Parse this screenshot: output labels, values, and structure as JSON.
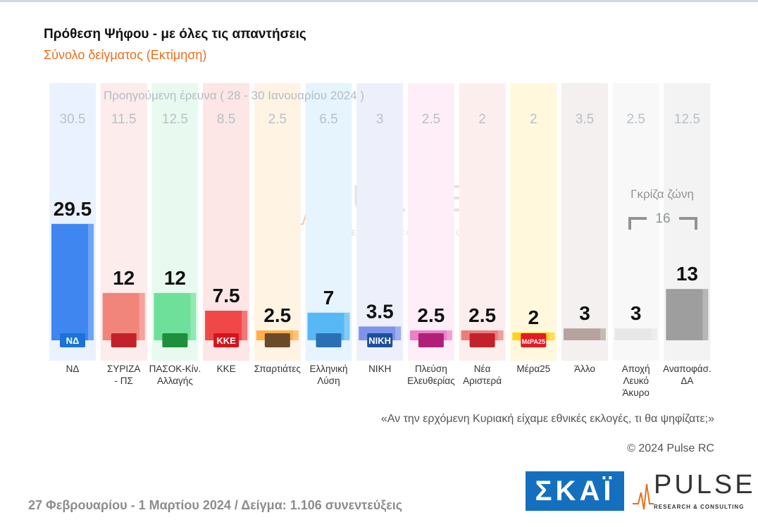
{
  "title": "Πρόθεση Ψήφου - με όλες τις απαντήσεις",
  "subtitle": "Σύνολο δείγματος   (Εκτίμηση)",
  "previous_caption": "Προηγούμενη έρευνα ( 28 - 30 Ιανουαρίου 2024 )",
  "gray_zone": {
    "label": "Γκρίζα ζώνη",
    "value": "16"
  },
  "question": "«Αν την ερχόμενη Κυριακή είχαμε εθνικές εκλογές, τι θα ψηφίζατε;»",
  "copyright": "© 2024 Pulse RC",
  "footer": "27 Φεβρουαρίου - 1 Μαρτίου 2024  /  Δείγμα:  1.106 συνεντεύξεις",
  "logos": {
    "skai": "ΣΚΑΪ",
    "pulse": "PULSE",
    "pulse_tagline": "RESEARCH & CONSULTING",
    "watermark": "PULSE",
    "watermark_tagline": "RESEARCH & CONSULTING"
  },
  "chart_data": {
    "type": "bar",
    "categories": [
      "ΝΔ",
      "ΣΥΡΙΖΑ - ΠΣ",
      "ΠΑΣΟΚ-Κίν. Αλλαγής",
      "ΚΚΕ",
      "Σπαρτιάτες",
      "Ελληνική Λύση",
      "ΝΙΚΗ",
      "Πλεύση Ελευθερίας",
      "Νέα Αριστερά",
      "Μέρα25",
      "Άλλο",
      "Αποχή Λευκό Άκυρο",
      "Αναποφάσ. ΔΑ"
    ],
    "category_lines": [
      [
        "ΝΔ"
      ],
      [
        "ΣΥΡΙΖΑ",
        "- ΠΣ"
      ],
      [
        "ΠΑΣΟΚ-Κίν.",
        "Αλλαγής"
      ],
      [
        "ΚΚΕ"
      ],
      [
        "Σπαρτιάτες"
      ],
      [
        "Ελληνική",
        "Λύση"
      ],
      [
        "ΝΙΚΗ"
      ],
      [
        "Πλεύση",
        "Ελευθερίας"
      ],
      [
        "Νέα",
        "Αριστερά"
      ],
      [
        "Μέρα25"
      ],
      [
        "Άλλο"
      ],
      [
        "Αποχή",
        "Λευκό",
        "Άκυρο"
      ],
      [
        "Αναποφάσ.",
        "ΔΑ"
      ]
    ],
    "series": [
      {
        "values": [
          29.5,
          12,
          12,
          7.5,
          2.5,
          7,
          3.5,
          2.5,
          2.5,
          2,
          3,
          3,
          13
        ]
      },
      {
        "name": "Προηγούμενη έρευνα ( 28 - 30 Ιανουαρίου 2024 )",
        "values": [
          30.5,
          11.5,
          12.5,
          8.5,
          2.5,
          6.5,
          3,
          2.5,
          2,
          2,
          3.5,
          2.5,
          12.5
        ]
      }
    ],
    "value_labels": [
      "29.5",
      "12",
      "12",
      "7.5",
      "2.5",
      "7",
      "3.5",
      "2.5",
      "2.5",
      "2",
      "3",
      "3",
      "13"
    ],
    "previous_labels": [
      "30.5",
      "11.5",
      "12.5",
      "8.5",
      "2.5",
      "6.5",
      "3",
      "2.5",
      "2",
      "2",
      "3.5",
      "2.5",
      "12.5"
    ],
    "party_marks": [
      "ΝΔ",
      "",
      "",
      "ΚΚΕ",
      "",
      "",
      "ΝΙΚΗ",
      "",
      "",
      "ΜέΡΑ25",
      "",
      "",
      ""
    ],
    "colors": [
      "#3f86f0",
      "#f2857b",
      "#6fe09a",
      "#f04848",
      "#ffb04a",
      "#58b8f6",
      "#7f93ea",
      "#ef7fc6",
      "#ec7d7d",
      "#ffd21c",
      "#b5a39d",
      "#e7e7e7",
      "#9e9e9e"
    ],
    "column_bg": [
      "#eaf2ff",
      "#fdecec",
      "#e8faef",
      "#fde6e6",
      "#fff3e4",
      "#e6f4fd",
      "#edf0fb",
      "#fdeef7",
      "#fdeeee",
      "#fff8dc",
      "#f3f0ef",
      "#f8f8f8",
      "#f3f3f3"
    ],
    "logo_colors": [
      "#1a73d9",
      "#c4222a",
      "#1f8f3b",
      "#d6141d",
      "#6b4a2a",
      "#2b6fb5",
      "#1d4f9a",
      "#b0207a",
      "#c4222a",
      "#e31b23",
      "",
      "",
      ""
    ],
    "ylim": [
      0,
      35
    ]
  }
}
